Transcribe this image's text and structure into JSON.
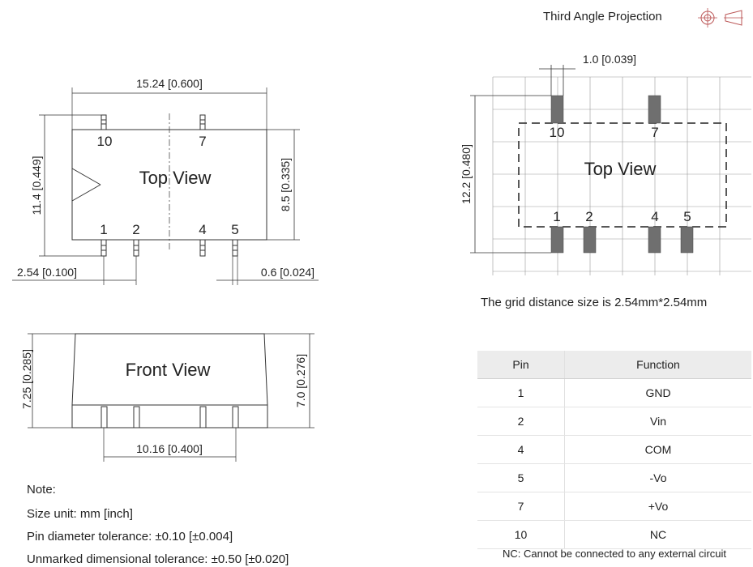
{
  "header": {
    "projection_label": "Third Angle Projection"
  },
  "top_view": {
    "title": "Top View",
    "width_dim": "15.24 [0.600]",
    "height_outer_dim": "11.4 [0.449]",
    "height_inner_dim": "8.5 [0.335]",
    "pitch_dim": "2.54 [0.100]",
    "pin_width_dim": "0.6 [0.024]",
    "pins_top": [
      "10",
      "7"
    ],
    "pins_bottom": [
      "1",
      "2",
      "4",
      "5"
    ]
  },
  "front_view": {
    "title": "Front View",
    "height_left_dim": "7.25 [0.285]",
    "height_right_dim": "7.0 [0.276]",
    "span_dim": "10.16 [0.400]"
  },
  "grid_view": {
    "title": "Top View",
    "pin_dim": "1.0  [0.039]",
    "height_dim": "12.2 [0.480]",
    "pins_top": [
      "10",
      "7"
    ],
    "pins_bottom": [
      "1",
      "2",
      "4",
      "5"
    ],
    "caption": "The grid distance size is 2.54mm*2.54mm"
  },
  "notes": {
    "heading": "Note:",
    "lines": [
      "Size unit: mm [inch]",
      "Pin diameter tolerance: ±0.10 [±0.004]",
      "Unmarked dimensional tolerance: ±0.50 [±0.020]"
    ]
  },
  "pin_table": {
    "headers": [
      "Pin",
      "Function"
    ],
    "rows": [
      [
        "1",
        "GND"
      ],
      [
        "2",
        "Vin"
      ],
      [
        "4",
        "COM"
      ],
      [
        "5",
        "-Vo"
      ],
      [
        "7",
        "+Vo"
      ],
      [
        "10",
        "NC"
      ]
    ],
    "footnote": "NC: Cannot be connected to any external circuit"
  }
}
